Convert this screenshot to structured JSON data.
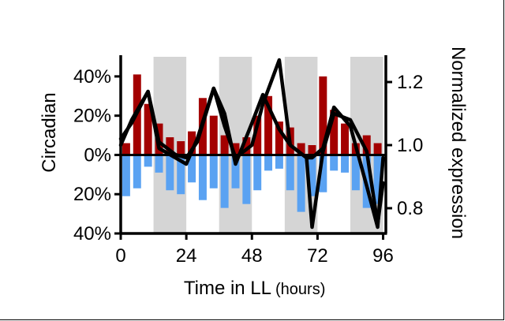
{
  "chart_data": {
    "type": "bar+line",
    "xlabel_main": "Time in LL",
    "xlabel_unit": "(hours)",
    "ylabel_left": "Circadian",
    "ylabel_right": "Normalized expression",
    "x_ticks": [
      "0",
      "24",
      "48",
      "72",
      "96"
    ],
    "x_tick_values": [
      0,
      24,
      48,
      72,
      96
    ],
    "xlim": [
      0,
      97
    ],
    "left_ticks": [
      "40%",
      "20%",
      "0%",
      "20%",
      "40%"
    ],
    "left_tick_values": [
      40,
      20,
      0,
      -20,
      -40
    ],
    "left_ylim": [
      -40,
      50
    ],
    "right_ticks": [
      "1.2",
      "1.0",
      "0.8"
    ],
    "right_tick_values": [
      1.2,
      1.0,
      0.8
    ],
    "right_ylim": [
      0.72,
      1.28
    ],
    "shaded_intervals": [
      [
        12,
        24
      ],
      [
        36,
        48
      ],
      [
        60,
        72
      ],
      [
        84,
        96
      ]
    ],
    "bar_x": [
      2,
      6,
      10,
      14,
      18,
      22,
      26,
      30,
      34,
      38,
      42,
      46,
      50,
      54,
      58,
      62,
      66,
      70,
      74,
      78,
      82,
      86,
      90,
      94
    ],
    "positive_values": [
      6,
      41,
      26,
      16,
      9,
      7,
      12,
      29,
      20,
      10,
      6,
      9,
      20,
      30,
      17,
      14,
      6,
      5,
      40,
      23,
      16,
      6,
      10,
      6
    ],
    "negative_values": [
      -21,
      -17,
      -6,
      -9,
      -18,
      -20,
      -14,
      -23,
      -17,
      -27,
      -17,
      -25,
      -18,
      -8,
      -7,
      -18,
      -29,
      -21,
      -19,
      -8,
      -9,
      -18,
      -27,
      -25
    ],
    "series": [
      {
        "x": [
          0,
          4,
          10,
          14,
          20,
          24,
          28,
          34,
          38,
          42,
          48,
          52,
          58,
          62,
          68,
          70,
          74,
          78,
          84,
          90,
          94,
          96
        ],
        "y": [
          1.02,
          1.07,
          1.17,
          1.01,
          0.97,
          0.96,
          1.01,
          1.18,
          1.06,
          0.96,
          1.0,
          1.13,
          1.27,
          1.0,
          0.96,
          0.74,
          0.98,
          1.1,
          1.08,
          0.98,
          0.75,
          0.88
        ]
      },
      {
        "x": [
          0,
          4,
          10,
          14,
          20,
          24,
          28,
          34,
          38,
          42,
          48,
          52,
          58,
          62,
          68,
          70,
          74,
          78,
          84,
          90,
          94,
          96
        ],
        "y": [
          1.0,
          1.08,
          1.17,
          0.99,
          0.96,
          0.94,
          1.02,
          1.18,
          1.1,
          0.94,
          1.07,
          1.16,
          1.05,
          1.0,
          0.96,
          0.96,
          0.99,
          1.12,
          1.06,
          0.87,
          0.74,
          0.96
        ]
      }
    ],
    "colors": {
      "positive": "#a30000",
      "negative": "#5aa2f2",
      "shade": "#d5d5d5",
      "line": "#000000"
    }
  }
}
